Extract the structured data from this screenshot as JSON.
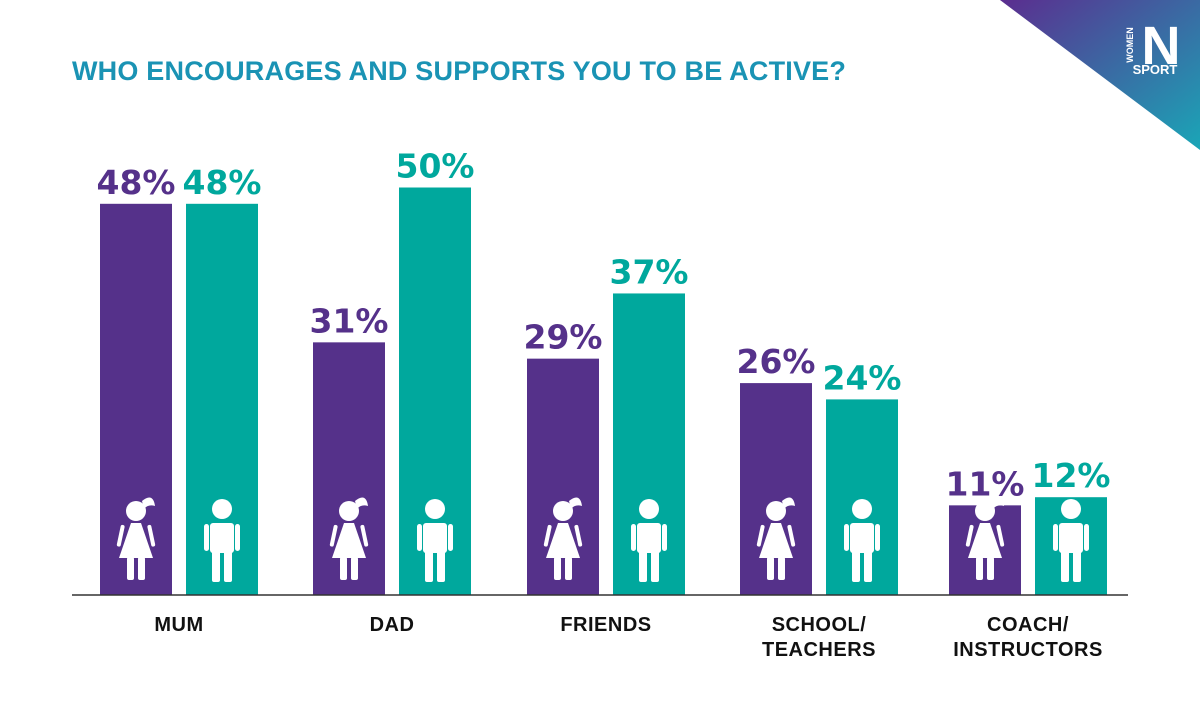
{
  "title": "WHO ENCOURAGES AND SUPPORTS YOU TO BE ACTIVE?",
  "logo": {
    "word_top": "WOMEN",
    "letter": "N",
    "word_bottom": "SPORT",
    "gradient": [
      "#5b2d8f",
      "#1aa6b7"
    ]
  },
  "colors": {
    "girls": "#55318a",
    "boys": "#00a89d",
    "title": "#1a93b4",
    "axis": "#333333",
    "icon": "#ffffff"
  },
  "icons": {
    "girls": "girl-figure-icon",
    "boys": "boy-figure-icon"
  },
  "chart_data": {
    "type": "bar",
    "title": "WHO ENCOURAGES AND SUPPORTS YOU TO BE ACTIVE?",
    "categories": [
      [
        "MUM"
      ],
      [
        "DAD"
      ],
      [
        "FRIENDS"
      ],
      [
        "SCHOOL/",
        "TEACHERS"
      ],
      [
        "COACH/",
        "INSTRUCTORS"
      ]
    ],
    "series": [
      {
        "key": "girls",
        "values": [
          48,
          31,
          29,
          26,
          11
        ],
        "labels": [
          "48%",
          "31%",
          "29%",
          "26%",
          "11%"
        ]
      },
      {
        "key": "boys",
        "values": [
          48,
          50,
          37,
          24,
          12
        ],
        "labels": [
          "48%",
          "50%",
          "37%",
          "24%",
          "12%"
        ]
      }
    ],
    "unit": "%",
    "ylim": [
      0,
      50
    ],
    "grid": false,
    "legend": "none"
  }
}
